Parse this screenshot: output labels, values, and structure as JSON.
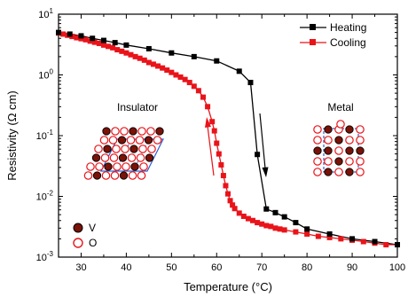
{
  "chart_data": {
    "type": "line",
    "xlabel": "Temperature (°C)",
    "ylabel": "Resistivity (Ω cm)",
    "x_range": [
      25,
      100
    ],
    "y_range": [
      0.001,
      10
    ],
    "y_scale": "log",
    "x_ticks": [
      30,
      40,
      50,
      60,
      70,
      80,
      90,
      100
    ],
    "y_ticks": [
      {
        "value": 0.001,
        "base": "10",
        "exp": "-3"
      },
      {
        "value": 0.01,
        "base": "10",
        "exp": "-2"
      },
      {
        "value": 0.1,
        "base": "10",
        "exp": "-1"
      },
      {
        "value": 1,
        "base": "10",
        "exp": "0"
      },
      {
        "value": 10,
        "base": "10",
        "exp": "1"
      }
    ],
    "grid": false,
    "legend_position": "top-right",
    "series": [
      {
        "name": "Heating",
        "color": "#000000",
        "marker": "square",
        "x": [
          25,
          27.5,
          30,
          32.5,
          35,
          37.5,
          40,
          45,
          50,
          55,
          60,
          65,
          67.5,
          69,
          71,
          73,
          75,
          77.5,
          80,
          85,
          90,
          95,
          100
        ],
        "y": [
          5.0,
          4.7,
          4.4,
          4.0,
          3.7,
          3.4,
          3.1,
          2.7,
          2.3,
          2.0,
          1.7,
          1.15,
          0.75,
          0.049,
          0.0062,
          0.0054,
          0.0046,
          0.0037,
          0.0029,
          0.0024,
          0.002,
          0.0018,
          0.0016
        ]
      },
      {
        "name": "Cooling",
        "color": "#e8141a",
        "marker": "square",
        "x": [
          25,
          26,
          27,
          28,
          29,
          30,
          31,
          32,
          33,
          34,
          35,
          36,
          37,
          38,
          39,
          40,
          41,
          42,
          43,
          44,
          45,
          46,
          47,
          48,
          49,
          50,
          51,
          52,
          53,
          54,
          55,
          56,
          57,
          58,
          59,
          59.5,
          60,
          60.5,
          61,
          61.5,
          62,
          62.5,
          63,
          63.5,
          64,
          65,
          66,
          67,
          68,
          69,
          70,
          71,
          72,
          73,
          74,
          75,
          77.5,
          80,
          82.5,
          85,
          87.5,
          90,
          92.5,
          95,
          97.5,
          100
        ],
        "y": [
          4.9,
          4.7,
          4.5,
          4.3,
          4.1,
          3.95,
          3.8,
          3.6,
          3.45,
          3.3,
          3.1,
          2.95,
          2.8,
          2.6,
          2.45,
          2.3,
          2.15,
          2.0,
          1.88,
          1.75,
          1.6,
          1.5,
          1.4,
          1.3,
          1.2,
          1.1,
          1.0,
          0.92,
          0.84,
          0.75,
          0.65,
          0.55,
          0.43,
          0.3,
          0.17,
          0.12,
          0.075,
          0.05,
          0.033,
          0.022,
          0.015,
          0.011,
          0.0085,
          0.0072,
          0.0063,
          0.0053,
          0.0047,
          0.0043,
          0.004,
          0.0037,
          0.0035,
          0.0033,
          0.0032,
          0.003,
          0.0029,
          0.0028,
          0.0026,
          0.0024,
          0.0022,
          0.0021,
          0.002,
          0.0019,
          0.0018,
          0.0017,
          0.0016,
          0.0016
        ]
      }
    ],
    "annotations": {
      "insulator_label": "Insulator",
      "metal_label": "Metal",
      "v_label": "V",
      "o_label": "O"
    },
    "colors": {
      "v_atom_fill": "#7a1208",
      "o_atom_stroke": "#e8141a",
      "cell_outline": "#2f5fd0",
      "heating_arrow": "#000000",
      "cooling_arrow": "#e8141a"
    }
  }
}
